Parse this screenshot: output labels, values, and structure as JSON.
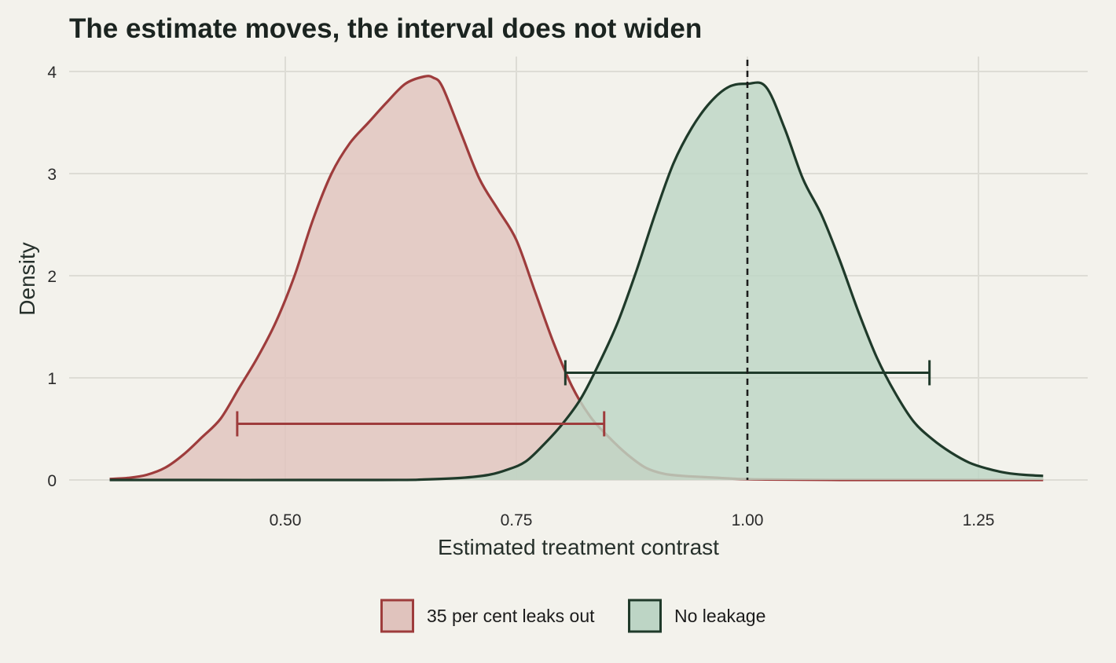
{
  "chart_data": {
    "type": "area",
    "title": "The estimate moves, the interval does not widen",
    "xlabel": "Estimated treatment contrast",
    "ylabel": "Density",
    "xlim": [
      0.31,
      1.32
    ],
    "ylim": [
      0,
      4
    ],
    "x_ticks": [
      {
        "value": 0.5,
        "label": "0.50"
      },
      {
        "value": 0.75,
        "label": "0.75"
      },
      {
        "value": 1.0,
        "label": "1.00"
      },
      {
        "value": 1.25,
        "label": "1.25"
      }
    ],
    "y_ticks": [
      {
        "value": 0,
        "label": "0"
      },
      {
        "value": 1,
        "label": "1"
      },
      {
        "value": 2,
        "label": "2"
      },
      {
        "value": 3,
        "label": "3"
      },
      {
        "value": 4,
        "label": "4"
      }
    ],
    "grid": true,
    "legend_position": "bottom",
    "reference_line": {
      "x": 1.0,
      "style": "dashed",
      "color": "#1c1c1c"
    },
    "series": [
      {
        "name": "35 per cent leaks out",
        "line_color": "#9e3c3c",
        "fill_color": "#e0c3bd",
        "interval": {
          "low": 0.448,
          "high": 0.845,
          "y": 0.55
        },
        "x": [
          0.31,
          0.33,
          0.35,
          0.37,
          0.39,
          0.41,
          0.43,
          0.45,
          0.47,
          0.49,
          0.51,
          0.53,
          0.55,
          0.57,
          0.59,
          0.61,
          0.63,
          0.65,
          0.66,
          0.67,
          0.69,
          0.71,
          0.73,
          0.75,
          0.77,
          0.79,
          0.81,
          0.83,
          0.85,
          0.87,
          0.89,
          0.91,
          0.93,
          0.95,
          0.97,
          0.99,
          1.02,
          1.1,
          1.2,
          1.32
        ],
        "y": [
          0.01,
          0.02,
          0.05,
          0.12,
          0.25,
          0.42,
          0.6,
          0.9,
          1.2,
          1.55,
          2.0,
          2.55,
          3.0,
          3.3,
          3.5,
          3.7,
          3.88,
          3.95,
          3.94,
          3.85,
          3.4,
          2.95,
          2.65,
          2.35,
          1.85,
          1.35,
          0.92,
          0.62,
          0.42,
          0.25,
          0.12,
          0.06,
          0.04,
          0.03,
          0.02,
          0.01,
          0.005,
          0.0,
          0.0,
          0.0
        ]
      },
      {
        "name": "No leakage",
        "line_color": "#1f3a2a",
        "fill_color": "#bdd5c5",
        "interval": {
          "low": 0.803,
          "high": 1.197,
          "y": 1.05
        },
        "x": [
          0.31,
          0.6,
          0.65,
          0.69,
          0.72,
          0.74,
          0.76,
          0.78,
          0.8,
          0.82,
          0.84,
          0.86,
          0.88,
          0.9,
          0.92,
          0.94,
          0.96,
          0.98,
          1.0,
          1.02,
          1.04,
          1.06,
          1.08,
          1.1,
          1.12,
          1.14,
          1.16,
          1.18,
          1.2,
          1.22,
          1.24,
          1.26,
          1.28,
          1.3,
          1.32
        ],
        "y": [
          0.0,
          0.0,
          0.005,
          0.02,
          0.05,
          0.1,
          0.18,
          0.35,
          0.55,
          0.8,
          1.15,
          1.55,
          2.05,
          2.6,
          3.1,
          3.45,
          3.7,
          3.85,
          3.88,
          3.85,
          3.45,
          2.95,
          2.6,
          2.15,
          1.65,
          1.2,
          0.85,
          0.57,
          0.4,
          0.27,
          0.17,
          0.11,
          0.07,
          0.05,
          0.04
        ]
      }
    ]
  }
}
